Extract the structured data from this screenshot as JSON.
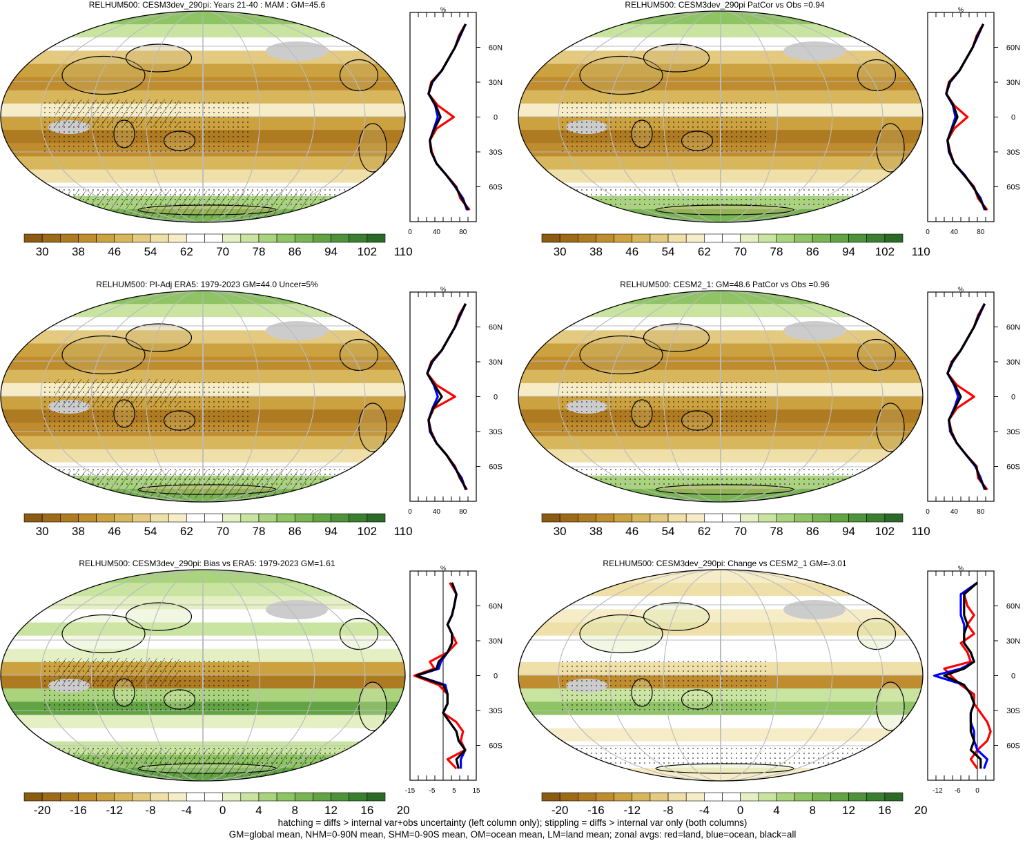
{
  "panels": [
    {
      "title": "RELHUM500: CESM3dev_290pi: Years 21-40 : MAM : GM=45.6",
      "kind": "abs",
      "hatch": true
    },
    {
      "title": "RELHUM500: CESM3dev_290pi PatCor vs Obs =0.94",
      "kind": "abs",
      "hatch": false
    },
    {
      "title": "RELHUM500: PI-Adj ERA5: 1979-2023 GM=44.0 Uncer=5%",
      "kind": "abs",
      "hatch": true
    },
    {
      "title": "RELHUM500: CESM2_1: GM=48.6 PatCor vs Obs =0.96",
      "kind": "abs",
      "hatch": false
    },
    {
      "title": "RELHUM500: CESM3dev_290pi: Bias vs ERA5: 1979-2023 GM=1.61",
      "kind": "diff",
      "hatch": true
    },
    {
      "title": "RELHUM500: CESM3dev_290pi: Change vs CESM2_1 GM=-3.01",
      "kind": "diff",
      "hatch": false
    }
  ],
  "colorbars": {
    "abs": {
      "labels": [
        "30",
        "38",
        "46",
        "54",
        "62",
        "70",
        "78",
        "86",
        "94",
        "102",
        "110"
      ]
    },
    "diff": {
      "labels": [
        "-20",
        "-16",
        "-12",
        "-8",
        "-4",
        "0",
        "4",
        "8",
        "12",
        "16",
        "20"
      ]
    }
  },
  "colors": {
    "abs_palette": [
      "#8c5a10",
      "#9d6a18",
      "#ae7a22",
      "#bf8d2f",
      "#cba23f",
      "#d8b65c",
      "#e4ca80",
      "#efdfa8",
      "#f6edc8",
      "#ffffff",
      "#ffffff",
      "#e4f0c4",
      "#c8e4a0",
      "#aad37e",
      "#8fc464",
      "#78b452",
      "#62a444",
      "#4e933a",
      "#3a7f30",
      "#2a6a26"
    ],
    "diff_palette": [
      "#8c5a10",
      "#9d6a18",
      "#ae7a22",
      "#bf8d2f",
      "#cba23f",
      "#d8b65c",
      "#e4ca80",
      "#efdfa8",
      "#f6edc8",
      "#ffffff",
      "#ffffff",
      "#e4f0c4",
      "#c8e4a0",
      "#aad37e",
      "#8fc464",
      "#78b452",
      "#62a444",
      "#4e933a",
      "#3a7f30",
      "#2a6a26"
    ],
    "land_line": "#ff0000",
    "ocean_line": "#0000ff",
    "all_line": "#000000",
    "missing": "#cccccc"
  },
  "chart_data": [
    {
      "type": "line",
      "title": "%",
      "xlabel": "",
      "ylabel": "",
      "x_ticks": [
        "0",
        "40",
        "80"
      ],
      "y_ticks": [
        "60N",
        "30N",
        "0",
        "30S",
        "60S"
      ],
      "xlim": [
        0,
        100
      ],
      "ylim": [
        -90,
        90
      ],
      "lat": [
        -80,
        -70,
        -60,
        -50,
        -40,
        -30,
        -20,
        -10,
        0,
        10,
        20,
        30,
        40,
        50,
        60,
        70,
        80
      ],
      "series": [
        {
          "name": "land",
          "color": "red",
          "values": [
            90,
            76,
            70,
            55,
            40,
            33,
            30,
            40,
            66,
            42,
            28,
            32,
            48,
            58,
            68,
            74,
            84
          ]
        },
        {
          "name": "ocean",
          "color": "blue",
          "values": [
            86,
            80,
            68,
            55,
            40,
            32,
            30,
            36,
            42,
            38,
            28,
            34,
            48,
            58,
            68,
            76,
            84
          ]
        },
        {
          "name": "all",
          "color": "black",
          "values": [
            88,
            78,
            69,
            55,
            40,
            32,
            30,
            37,
            46,
            39,
            28,
            33,
            48,
            58,
            68,
            75,
            84
          ]
        }
      ]
    },
    {
      "type": "line",
      "title": "%",
      "xlabel": "",
      "ylabel": "",
      "x_ticks": [
        "0",
        "40",
        "80"
      ],
      "y_ticks": [
        "60N",
        "30N",
        "0",
        "30S",
        "60S"
      ],
      "xlim": [
        0,
        100
      ],
      "ylim": [
        -90,
        90
      ],
      "lat": [
        -80,
        -70,
        -60,
        -50,
        -40,
        -30,
        -20,
        -10,
        0,
        10,
        20,
        30,
        40,
        50,
        60,
        70,
        80
      ],
      "series": [
        {
          "name": "land",
          "color": "red",
          "values": [
            90,
            76,
            70,
            55,
            40,
            34,
            30,
            40,
            60,
            40,
            28,
            32,
            48,
            58,
            68,
            74,
            84
          ]
        },
        {
          "name": "ocean",
          "color": "blue",
          "values": [
            86,
            80,
            68,
            56,
            40,
            32,
            30,
            36,
            42,
            38,
            28,
            34,
            48,
            58,
            68,
            76,
            84
          ]
        },
        {
          "name": "all",
          "color": "black",
          "values": [
            88,
            78,
            69,
            55,
            40,
            33,
            30,
            37,
            45,
            39,
            28,
            33,
            48,
            58,
            68,
            75,
            84
          ]
        }
      ]
    },
    {
      "type": "line",
      "title": "%",
      "xlabel": "",
      "ylabel": "",
      "x_ticks": [
        "0",
        "40",
        "80"
      ],
      "y_ticks": [
        "60N",
        "30N",
        "0",
        "30S",
        "60S"
      ],
      "xlim": [
        0,
        100
      ],
      "ylim": [
        -90,
        90
      ],
      "lat": [
        -80,
        -70,
        -60,
        -50,
        -40,
        -30,
        -20,
        -10,
        0,
        10,
        20,
        30,
        40,
        50,
        60,
        70,
        80
      ],
      "series": [
        {
          "name": "land",
          "color": "red",
          "values": [
            86,
            75,
            68,
            55,
            40,
            32,
            28,
            36,
            68,
            40,
            26,
            32,
            48,
            58,
            68,
            74,
            84
          ]
        },
        {
          "name": "ocean",
          "color": "blue",
          "values": [
            84,
            78,
            66,
            55,
            40,
            30,
            28,
            34,
            42,
            36,
            26,
            34,
            48,
            58,
            68,
            76,
            84
          ]
        },
        {
          "name": "all",
          "color": "black",
          "values": [
            85,
            76,
            67,
            55,
            40,
            31,
            28,
            35,
            48,
            37,
            26,
            33,
            48,
            58,
            68,
            75,
            84
          ]
        }
      ]
    },
    {
      "type": "line",
      "title": "%",
      "xlabel": "",
      "ylabel": "",
      "x_ticks": [
        "0",
        "40",
        "80"
      ],
      "y_ticks": [
        "60N",
        "30N",
        "0",
        "30S",
        "60S"
      ],
      "xlim": [
        0,
        100
      ],
      "ylim": [
        -90,
        90
      ],
      "lat": [
        -80,
        -70,
        -60,
        -50,
        -40,
        -30,
        -20,
        -10,
        0,
        10,
        20,
        30,
        40,
        50,
        60,
        70,
        80
      ],
      "series": [
        {
          "name": "land",
          "color": "red",
          "values": [
            90,
            76,
            74,
            58,
            44,
            36,
            32,
            44,
            70,
            44,
            30,
            36,
            50,
            60,
            70,
            76,
            86
          ]
        },
        {
          "name": "ocean",
          "color": "blue",
          "values": [
            86,
            80,
            72,
            58,
            44,
            34,
            32,
            40,
            46,
            40,
            30,
            38,
            50,
            60,
            70,
            78,
            86
          ]
        },
        {
          "name": "all",
          "color": "black",
          "values": [
            88,
            78,
            73,
            58,
            44,
            35,
            32,
            41,
            50,
            41,
            30,
            37,
            50,
            60,
            70,
            77,
            86
          ]
        }
      ]
    },
    {
      "type": "line",
      "title": "%",
      "xlabel": "",
      "ylabel": "",
      "x_ticks": [
        "-15",
        "-5",
        "5",
        "15"
      ],
      "y_ticks": [
        "60N",
        "30N",
        "0",
        "30S",
        "60S"
      ],
      "xlim": [
        -15,
        15
      ],
      "ylim": [
        -90,
        90
      ],
      "lat": [
        -80,
        -72,
        -64,
        -56,
        -48,
        -40,
        -32,
        -24,
        -16,
        -8,
        0,
        6,
        12,
        20,
        28,
        36,
        44,
        52,
        60,
        70,
        80
      ],
      "series": [
        {
          "name": "land",
          "color": "red",
          "values": [
            6,
            2,
            10,
            8,
            9,
            6,
            0,
            2,
            2,
            -2,
            -13,
            -4,
            -6,
            2,
            6,
            4,
            2,
            4,
            5,
            6,
            3
          ]
        },
        {
          "name": "ocean",
          "color": "blue",
          "values": [
            8,
            8,
            10,
            7,
            6,
            3,
            0,
            2,
            2,
            1,
            -12,
            -2,
            -1,
            2,
            4,
            4,
            2,
            4,
            5,
            6,
            4
          ]
        },
        {
          "name": "all",
          "color": "black",
          "values": [
            7,
            6,
            10,
            7,
            6,
            3,
            0,
            2,
            2,
            0,
            -12,
            -3,
            -2,
            2,
            4,
            4,
            2,
            4,
            5,
            6,
            4
          ]
        }
      ]
    },
    {
      "type": "line",
      "title": "%",
      "xlabel": "",
      "ylabel": "",
      "x_ticks": [
        "-12",
        "-6",
        "0"
      ],
      "y_ticks": [
        "60N",
        "30N",
        "0",
        "30S",
        "60S"
      ],
      "xlim": [
        -15,
        5
      ],
      "ylim": [
        -90,
        90
      ],
      "lat": [
        -80,
        -72,
        -64,
        -56,
        -48,
        -40,
        -32,
        -24,
        -16,
        -8,
        0,
        6,
        12,
        20,
        28,
        36,
        44,
        52,
        60,
        70,
        80
      ],
      "series": [
        {
          "name": "land",
          "color": "red",
          "values": [
            0,
            -2,
            0,
            3,
            4,
            3,
            1,
            -1,
            -1,
            -5,
            -8,
            -10,
            -2,
            -3,
            -5,
            -1,
            -3,
            -1,
            -3,
            -4,
            0
          ]
        },
        {
          "name": "ocean",
          "color": "blue",
          "values": [
            2,
            3,
            0,
            -1,
            -1,
            -2,
            -2,
            -1,
            -2,
            -4,
            -13,
            -5,
            -1,
            -2,
            -4,
            -4,
            -4,
            -5,
            -5,
            -5,
            0
          ]
        },
        {
          "name": "all",
          "color": "black",
          "values": [
            1,
            1,
            -2,
            -1,
            -2,
            -2,
            -2,
            -1,
            -2,
            -4,
            -10,
            -4,
            -1,
            -2,
            -4,
            -4,
            -3,
            -4,
            -4,
            -4,
            0
          ]
        }
      ]
    }
  ],
  "footer": {
    "line1": "hatching = diffs > internal var+obs uncertainty (left column only); stippling = diffs > internal var only (both columns)",
    "line2": "GM=global mean, NHM=0-90N mean, SHM=0-90S mean, OM=ocean mean, LM=land mean; zonal avgs: red=land, blue=ocean, black=all"
  }
}
